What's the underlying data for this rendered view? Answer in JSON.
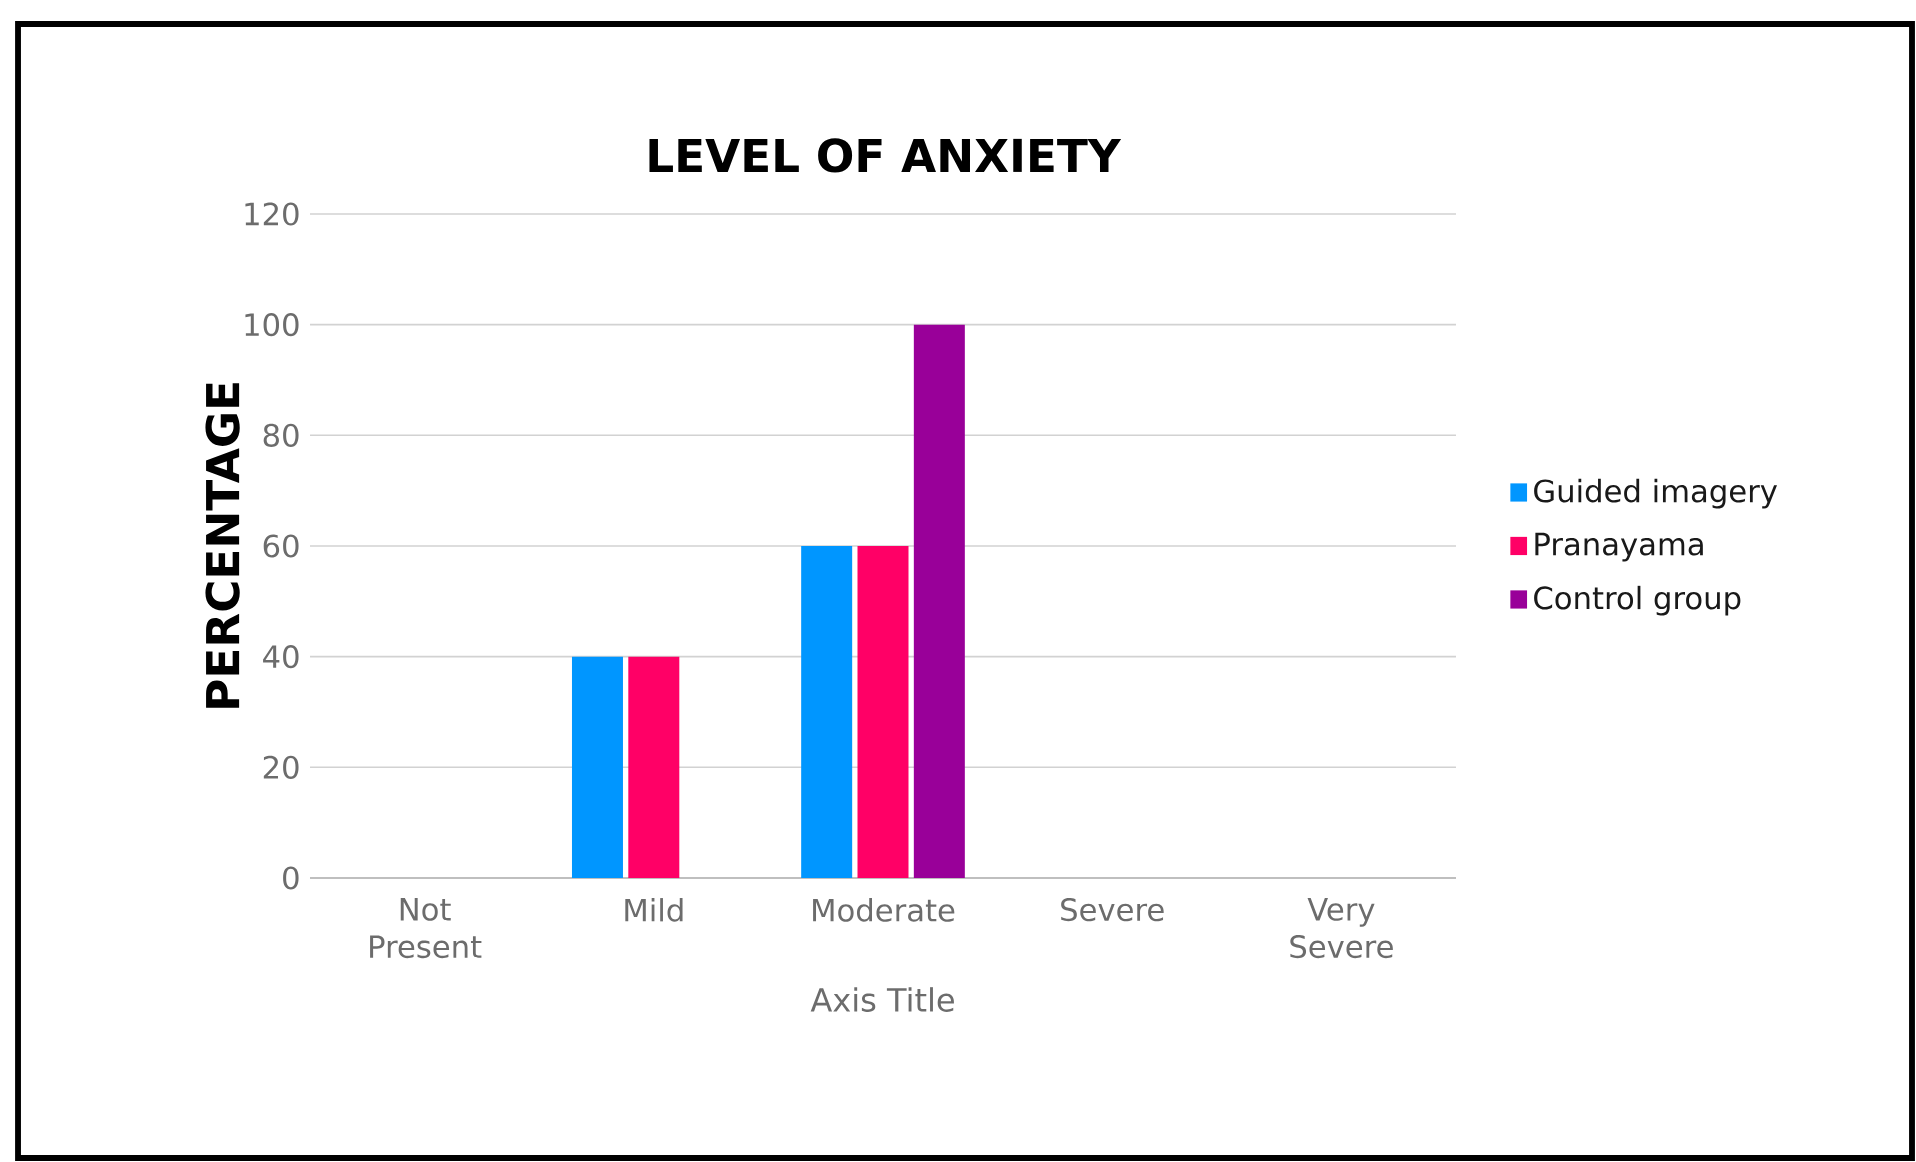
{
  "chart_data": {
    "type": "bar",
    "title": "LEVEL OF ANXIETY",
    "xlabel": "Axis Title",
    "ylabel": "PERCENTAGE",
    "categories": [
      "Not Present",
      "Mild",
      "Moderate",
      "Severe",
      "Very Severe"
    ],
    "series": [
      {
        "name": "Guided imagery",
        "color": "#0096ff",
        "values": [
          0,
          40,
          60,
          0,
          0
        ]
      },
      {
        "name": "Pranayama",
        "color": "#ff0066",
        "values": [
          0,
          40,
          60,
          0,
          0
        ]
      },
      {
        "name": "Control group",
        "color": "#990099",
        "values": [
          0,
          0,
          100,
          0,
          0
        ]
      }
    ],
    "ylim": [
      0,
      120
    ],
    "yticks": [
      0,
      20,
      40,
      60,
      80,
      100,
      120
    ],
    "grid": "y",
    "legend": "right"
  }
}
